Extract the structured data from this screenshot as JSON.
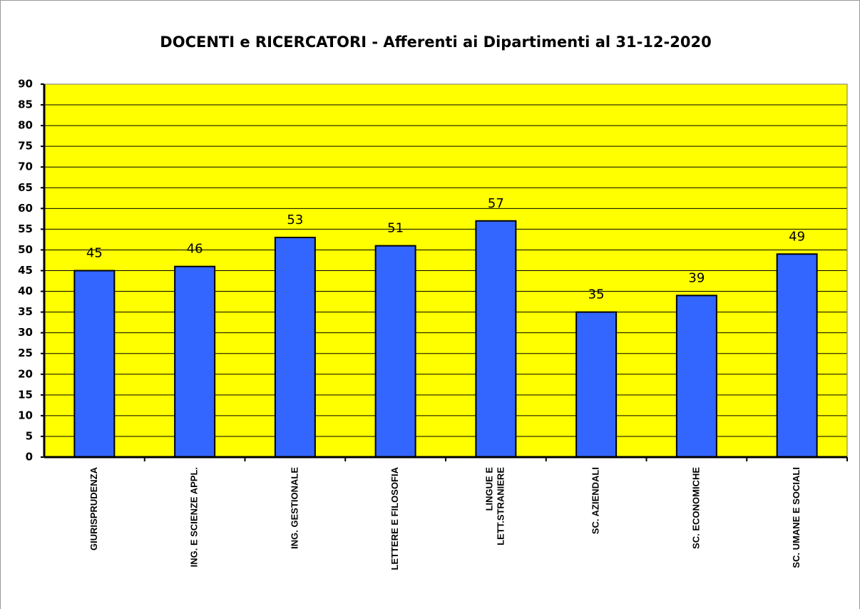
{
  "chart_data": {
    "type": "bar",
    "title": "DOCENTI e RICERCATORI - Afferenti ai Dipartimenti al 31-12-2020",
    "categories": [
      "GIURISPRUDENZA",
      "ING. E SCIENZE APPL.",
      "ING. GESTIONALE",
      "LETTERE E FILOSOFIA",
      "LINGUE E\nLETT.STRANIERE",
      "SC. AZIENDALI",
      "SC. ECONOMICHE",
      "SC. UMANE E SOCIALI"
    ],
    "values": [
      45,
      46,
      53,
      51,
      57,
      35,
      39,
      49
    ],
    "color": "#3366ff",
    "background": "#ffff00",
    "ylim": [
      0,
      90
    ],
    "yticks": [
      0,
      5,
      10,
      15,
      20,
      25,
      30,
      35,
      40,
      45,
      50,
      55,
      60,
      65,
      70,
      75,
      80,
      85,
      90
    ],
    "grid": true
  }
}
